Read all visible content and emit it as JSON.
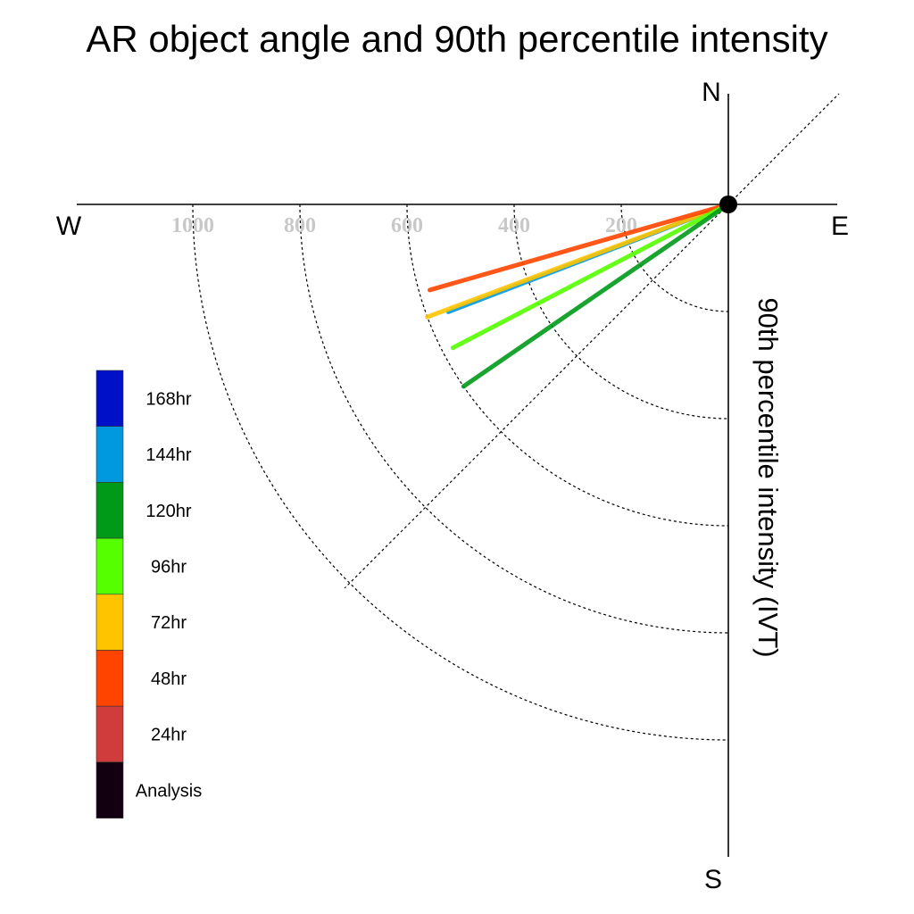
{
  "chart_data": {
    "type": "polar-line",
    "title": "AR object angle and 90th percentile intensity",
    "radial_label": "90th percentile intensity (IVT)",
    "compass": {
      "north": "N",
      "south": "S",
      "east": "E",
      "west": "W"
    },
    "radial_ticks": [
      200,
      400,
      600,
      800,
      1000
    ],
    "radial_tick_labels": [
      "200",
      "400",
      "600",
      "800",
      "1000"
    ],
    "radial_range": [
      0,
      1200
    ],
    "legend": [
      "168hr",
      "144hr",
      "120hr",
      "96hr",
      "72hr",
      "48hr",
      "24hr",
      "Analysis"
    ],
    "legend_colors": [
      "#0010c8",
      "#0099e0",
      "#009918",
      "#55ff00",
      "#ffc400",
      "#ff4400",
      "#d03c3c",
      "#120010"
    ],
    "series": [
      {
        "name": "144hr",
        "color": "#0099e0",
        "angle_deg_below_west": 21,
        "intensity": 560
      },
      {
        "name": "72hr",
        "color": "#ffc400",
        "angle_deg_below_west": 20.5,
        "intensity": 600
      },
      {
        "name": "48hr",
        "color": "#ff4400",
        "angle_deg_below_west": 16,
        "intensity": 580
      },
      {
        "name": "96hr",
        "color": "#55ff00",
        "angle_deg_below_west": 27.5,
        "intensity": 580
      },
      {
        "name": "120hr",
        "color": "#009918",
        "angle_deg_below_west": 34.5,
        "intensity": 600
      }
    ]
  }
}
